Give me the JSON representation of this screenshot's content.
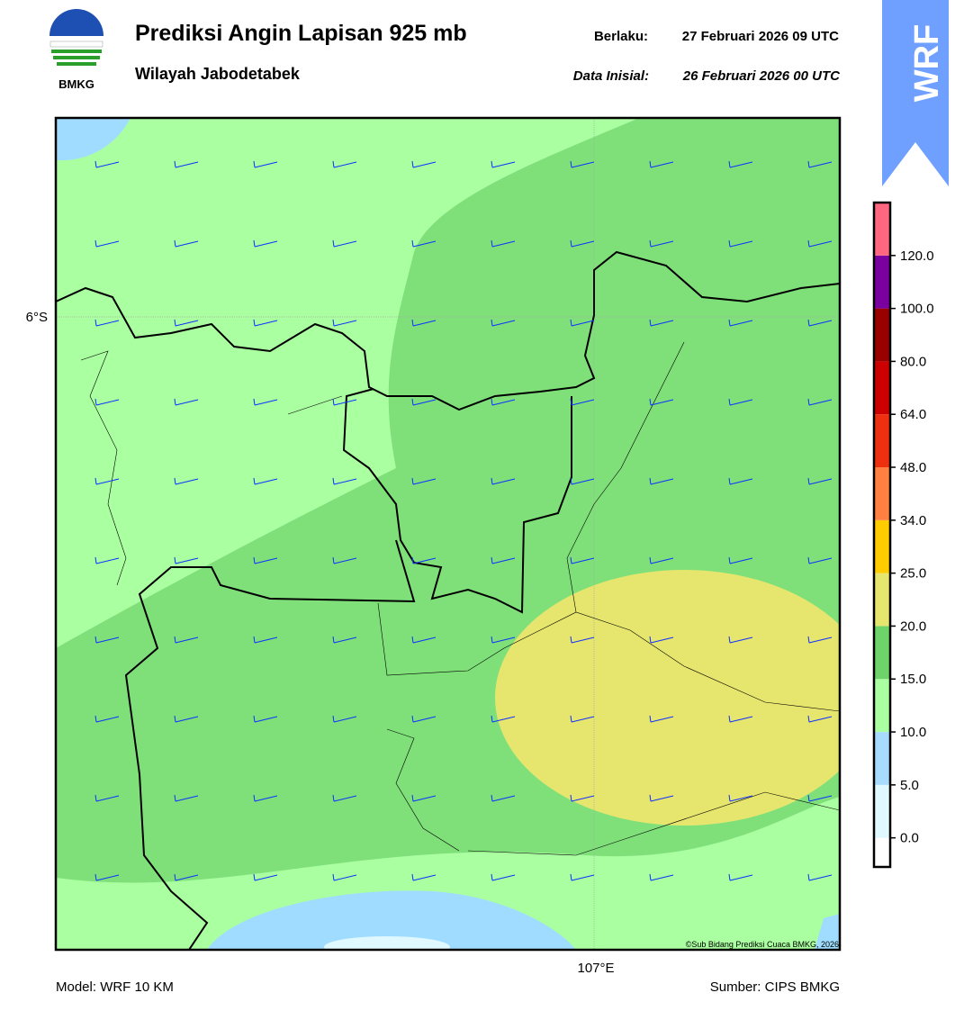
{
  "header": {
    "title": "Prediksi Angin Lapisan 925 mb",
    "subtitle": "Wilayah Jabodetabek",
    "valid_label": "Berlaku:",
    "valid_time": "27 Februari 2026 09 UTC",
    "init_label": "Data Inisial:",
    "init_time": "26 Februari 2026 00 UTC"
  },
  "logo": {
    "text": "BMKG"
  },
  "badge": "WRF",
  "map": {
    "lat_label": "6°S",
    "lon_label": "107°E",
    "credit": "©Sub Bidang Prediksi Cuaca BMKG, 2026"
  },
  "colorbar": {
    "colors": [
      "#ffffff",
      "#e0f8ff",
      "#a8dcff",
      "#aaffa0",
      "#6ed46a",
      "#e6e66e",
      "#ffcc00",
      "#ff8040",
      "#ee3010",
      "#cc0000",
      "#990000",
      "#7a00a0",
      "#ff6680"
    ],
    "ticks": [
      {
        "value": 0,
        "label": "0.0"
      },
      {
        "value": 5,
        "label": "5.0"
      },
      {
        "value": 10,
        "label": "10.0"
      },
      {
        "value": 15,
        "label": "15.0"
      },
      {
        "value": 20,
        "label": "20.0"
      },
      {
        "value": 25,
        "label": "25.0"
      },
      {
        "value": 34,
        "label": "34.0"
      },
      {
        "value": 48,
        "label": "48.0"
      },
      {
        "value": 64,
        "label": "64.0"
      },
      {
        "value": 80,
        "label": "80.0"
      },
      {
        "value": 100,
        "label": "100.0"
      },
      {
        "value": 120,
        "label": "120.0"
      }
    ]
  },
  "footer": {
    "model": "Model: WRF 10 KM",
    "source": "Sumber: CIPS BMKG"
  }
}
